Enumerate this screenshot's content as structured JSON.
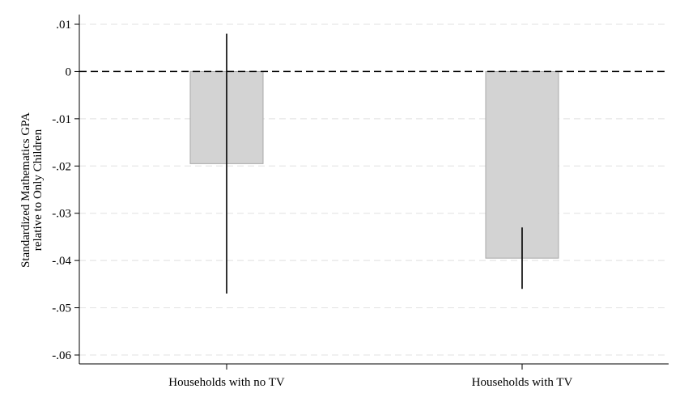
{
  "chart_data": {
    "type": "bar",
    "categories": [
      "Households with no TV",
      "Households with TV"
    ],
    "values": [
      -0.0195,
      -0.0395
    ],
    "error_bars": [
      {
        "low": -0.047,
        "high": 0.008
      },
      {
        "low": -0.046,
        "high": -0.033
      }
    ],
    "title": "",
    "xlabel": "",
    "ylabel_lines": [
      "Standardized Mathematics GPA",
      "relative to Only Children"
    ],
    "ylim": [
      -0.062,
      0.012
    ],
    "yticks": [
      0.01,
      0,
      -0.01,
      -0.02,
      -0.03,
      -0.04,
      -0.05,
      -0.06
    ],
    "ytick_labels": [
      ".01",
      "0",
      "-.01",
      "-.02",
      "-.03",
      "-.04",
      "-.05",
      "-.06"
    ],
    "reference_line": 0,
    "grid": true,
    "colors": {
      "bar_fill": "#d3d3d3",
      "bar_stroke": "#a8a8a8",
      "error_bar": "#000000",
      "grid": "#e6e6e6",
      "axis": "#000000"
    }
  }
}
